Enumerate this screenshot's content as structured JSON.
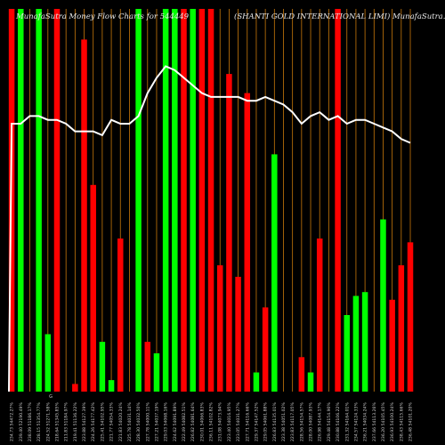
{
  "header": {
    "left_title": "MunafaSutra  Money Flow  Charts for 544449",
    "right_title": "(SHANTI GOLD INTERNATIONAL  LIMI) MunafaSutra.com"
  },
  "colors": {
    "background": "#000000",
    "up_bar": "#00ff00",
    "down_bar": "#ff0000",
    "grid": "#c8780a",
    "line": "#ffffff",
    "label": "#cccccc"
  },
  "chart_data": {
    "type": "bar",
    "title": "MunafaSutra  Money Flow  Charts for 544449",
    "subtitle": "(SHANTI GOLD INTERNATIONAL  LIMI) MunafaSutra.com",
    "ylim": [
      0,
      100
    ],
    "categories": [
      "234.73 54472.27%",
      "239.40 52190.49%",
      "238.09 51186.17%",
      "228.15 51354.77%",
      "224.52 51271.58%",
      "218.64 51345.85%",
      "211.83 51184.97%",
      "219.41 51136.22%",
      "223.88 54127.39%",
      "224.26 54177.42%",
      "225.41 54102.95%",
      "221.77 54054.33%",
      "221.83 54020.24%",
      "225.78 54031.14%",
      "228.30 54032.50%",
      "227.78 54000.11%",
      "227.21 54037.19%",
      "229.03 54068.16%",
      "224.62 54091.89%",
      "222.49 54082.51%",
      "226.82 54081.64%",
      "230.01 54066.83%",
      "236.11 54102.82%",
      "231.08 54073.94%",
      "223.40 54016.95%",
      "223.05 54031.27%",
      "227.71 54116.66%",
      "229.37 54147.52%",
      "229.05 54061.88%",
      "226.83 54135.01%",
      "223.38 54051.02%",
      "223.83 54117.05%",
      "228.56 54154.57%",
      "228.00 54087.93%",
      "226.98 54144.17%",
      "229.48 54154.90%",
      "230.88 54106.22%",
      "231.32 54164.01%",
      "234.57 54124.33%",
      "236.21 54034.24%",
      "237.66 54113.26%",
      "236.20 54105.45%",
      "236.93 54100.24%",
      "238.43 54115.66%",
      "236.48 54101.20%"
    ],
    "series": [
      {
        "values": [
          100,
          100,
          0,
          100,
          15,
          100,
          0,
          2,
          92,
          54,
          13,
          3,
          40,
          0,
          100,
          13,
          10,
          100,
          100,
          100,
          100,
          100,
          100,
          33,
          83,
          30,
          78,
          5,
          22,
          62,
          0,
          0,
          9,
          5,
          40,
          0,
          100,
          20,
          25,
          26,
          0,
          45,
          24,
          33,
          39
        ],
        "directions": [
          "down",
          "up",
          "down",
          "up",
          "up",
          "down",
          "down",
          "down",
          "down",
          "down",
          "up",
          "up",
          "down",
          "down",
          "up",
          "down",
          "up",
          "up",
          "up",
          "down",
          "up",
          "down",
          "down",
          "down",
          "down",
          "down",
          "down",
          "up",
          "down",
          "up",
          "down",
          "up",
          "down",
          "up",
          "down",
          "down",
          "down",
          "up",
          "up",
          "up",
          "down",
          "up",
          "down",
          "down",
          "down"
        ]
      },
      {
        "values": [
          70,
          70,
          72,
          72,
          71,
          71,
          70,
          68,
          68,
          68,
          67,
          71,
          70,
          70,
          72,
          78,
          82,
          85,
          84,
          82,
          80,
          78,
          77,
          77,
          77,
          77,
          76,
          76,
          77,
          76,
          75,
          73,
          70,
          72,
          73,
          71,
          72,
          70,
          71,
          71,
          70,
          69,
          68,
          66,
          65
        ]
      }
    ],
    "xlabel": "",
    "ylabel": "",
    "grid": true,
    "x_tick_letter": "G"
  }
}
